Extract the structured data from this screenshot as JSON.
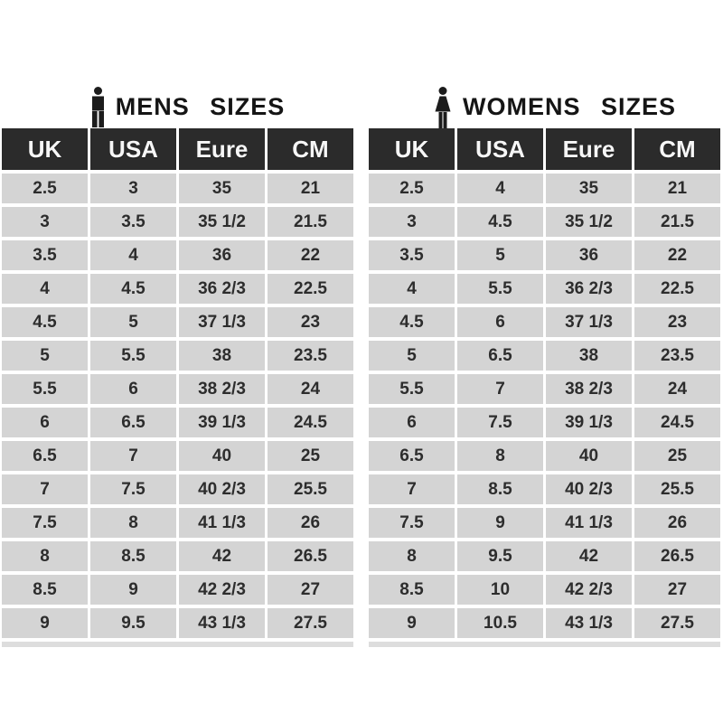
{
  "colors": {
    "page_background": "#ffffff",
    "header_cell_bg": "#2b2b2b",
    "header_cell_text": "#f6f6f6",
    "data_cell_bg": "#d4d4d4",
    "data_cell_text": "#2d2d2d",
    "title_text": "#151515",
    "icon_color": "#1c1c1c"
  },
  "chart_data": [
    {
      "type": "table",
      "gender": "mens",
      "title": "MENS SIZES",
      "icon": "man-icon",
      "columns": [
        "UK",
        "USA",
        "Eure",
        "CM"
      ],
      "rows": [
        [
          "2.5",
          "3",
          "35",
          "21"
        ],
        [
          "3",
          "3.5",
          "35 1/2",
          "21.5"
        ],
        [
          "3.5",
          "4",
          "36",
          "22"
        ],
        [
          "4",
          "4.5",
          "36 2/3",
          "22.5"
        ],
        [
          "4.5",
          "5",
          "37 1/3",
          "23"
        ],
        [
          "5",
          "5.5",
          "38",
          "23.5"
        ],
        [
          "5.5",
          "6",
          "38 2/3",
          "24"
        ],
        [
          "6",
          "6.5",
          "39 1/3",
          "24.5"
        ],
        [
          "6.5",
          "7",
          "40",
          "25"
        ],
        [
          "7",
          "7.5",
          "40 2/3",
          "25.5"
        ],
        [
          "7.5",
          "8",
          "41 1/3",
          "26"
        ],
        [
          "8",
          "8.5",
          "42",
          "26.5"
        ],
        [
          "8.5",
          "9",
          "42 2/3",
          "27"
        ],
        [
          "9",
          "9.5",
          "43 1/3",
          "27.5"
        ]
      ]
    },
    {
      "type": "table",
      "gender": "womens",
      "title": "WOMENS SIZES",
      "icon": "woman-icon",
      "columns": [
        "UK",
        "USA",
        "Eure",
        "CM"
      ],
      "rows": [
        [
          "2.5",
          "4",
          "35",
          "21"
        ],
        [
          "3",
          "4.5",
          "35 1/2",
          "21.5"
        ],
        [
          "3.5",
          "5",
          "36",
          "22"
        ],
        [
          "4",
          "5.5",
          "36 2/3",
          "22.5"
        ],
        [
          "4.5",
          "6",
          "37 1/3",
          "23"
        ],
        [
          "5",
          "6.5",
          "38",
          "23.5"
        ],
        [
          "5.5",
          "7",
          "38 2/3",
          "24"
        ],
        [
          "6",
          "7.5",
          "39 1/3",
          "24.5"
        ],
        [
          "6.5",
          "8",
          "40",
          "25"
        ],
        [
          "7",
          "8.5",
          "40 2/3",
          "25.5"
        ],
        [
          "7.5",
          "9",
          "41 1/3",
          "26"
        ],
        [
          "8",
          "9.5",
          "42",
          "26.5"
        ],
        [
          "8.5",
          "10",
          "42 2/3",
          "27"
        ],
        [
          "9",
          "10.5",
          "43 1/3",
          "27.5"
        ]
      ]
    }
  ]
}
